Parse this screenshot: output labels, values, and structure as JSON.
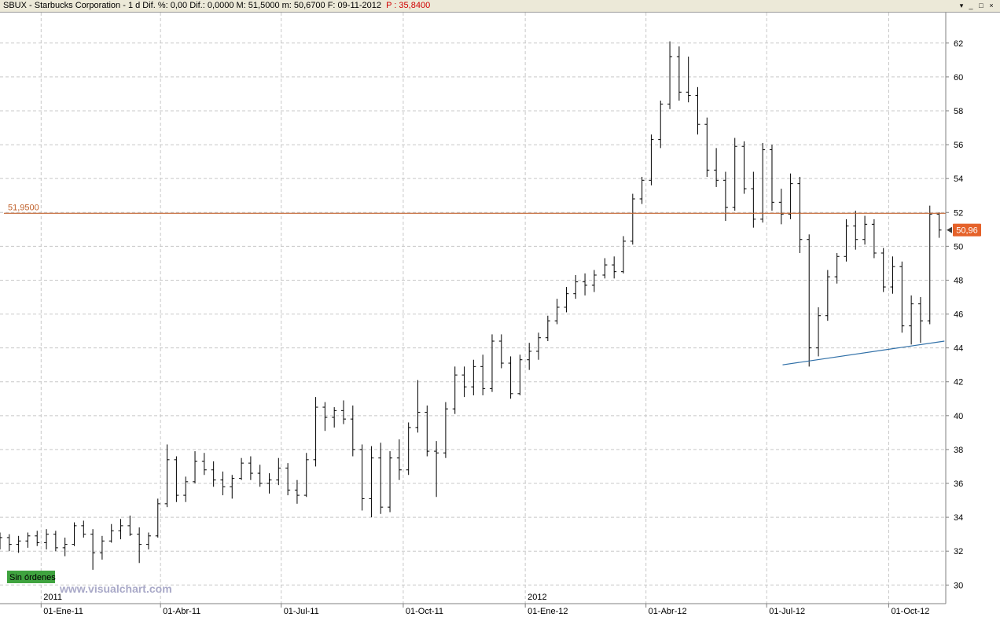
{
  "header": {
    "title": "SBUX - Starbucks Corporation - 1 d  Dif. %: 0,00  Dif.: 0,0000  M: 51,5000  m: 50,6700  F: 09-11-2012",
    "p_label": "P : 35,8400",
    "window_buttons": [
      "▾",
      "_",
      "□",
      "×"
    ]
  },
  "labels": {
    "hline_value": "51,9500",
    "last_price": "50,96",
    "orders_badge": "Sin órdenes",
    "watermark": "www.visualchart.com",
    "year_labels": [
      "2011",
      "2012"
    ]
  },
  "colors": {
    "hline": "#c0612b",
    "trendline": "#2f6fa7",
    "last_price_bg": "#e5622a",
    "orders_badge_bg": "#3fa33f",
    "watermark": "#a9a9c8",
    "bars": "#000000",
    "grid": "#c8c8c8"
  },
  "chart_data": {
    "type": "ohlc-bar",
    "y_ticks": [
      "30",
      "32",
      "34",
      "36",
      "38",
      "40",
      "42",
      "44",
      "46",
      "48",
      "50",
      "52",
      "54",
      "56",
      "58",
      "60",
      "62"
    ],
    "ylim": [
      28.9,
      63.8
    ],
    "x_ticks": [
      "01-Ene-11",
      "01-Abr-11",
      "01-Jul-11",
      "01-Oct-11",
      "01-Ene-12",
      "01-Abr-12",
      "01-Jul-12",
      "01-Oct-12"
    ],
    "x_tick_dates": [
      "2011-01-01",
      "2011-04-01",
      "2011-07-01",
      "2011-10-01",
      "2012-01-01",
      "2012-04-01",
      "2012-07-01",
      "2012-10-01"
    ],
    "xlim": [
      "2010-12-01",
      "2012-11-13"
    ],
    "grid": true,
    "horizontal_line": 51.95,
    "trendline": {
      "start": [
        "2012-07-13",
        43.0
      ],
      "end": [
        "2012-11-12",
        44.4
      ]
    },
    "last_value": 50.96,
    "series": [
      {
        "values": [
          [
            "2010-12-01",
            32.3,
            33.1,
            32.1,
            32.8
          ],
          [
            "2010-12-08",
            32.8,
            33.0,
            32.0,
            32.4
          ],
          [
            "2010-12-15",
            32.4,
            32.9,
            31.9,
            32.6
          ],
          [
            "2010-12-22",
            32.6,
            33.1,
            32.2,
            32.9
          ],
          [
            "2010-12-29",
            32.9,
            33.2,
            32.3,
            32.5
          ],
          [
            "2011-01-05",
            32.5,
            33.3,
            32.1,
            33.0
          ],
          [
            "2011-01-12",
            33.0,
            33.2,
            32.0,
            32.2
          ],
          [
            "2011-01-19",
            32.2,
            32.8,
            31.7,
            32.4
          ],
          [
            "2011-01-26",
            32.4,
            33.7,
            32.3,
            33.5
          ],
          [
            "2011-02-02",
            33.5,
            33.8,
            32.8,
            33.0
          ],
          [
            "2011-02-09",
            33.0,
            33.3,
            30.9,
            31.9
          ],
          [
            "2011-02-16",
            31.9,
            32.9,
            31.5,
            32.6
          ],
          [
            "2011-02-23",
            32.6,
            33.6,
            32.5,
            33.2
          ],
          [
            "2011-03-02",
            33.2,
            33.9,
            32.7,
            33.5
          ],
          [
            "2011-03-09",
            33.5,
            34.1,
            32.9,
            33.0
          ],
          [
            "2011-03-16",
            33.0,
            33.4,
            31.3,
            32.4
          ],
          [
            "2011-03-23",
            32.4,
            33.1,
            32.1,
            32.9
          ],
          [
            "2011-03-30",
            32.9,
            35.1,
            32.8,
            34.8
          ],
          [
            "2011-04-06",
            34.8,
            38.3,
            34.6,
            37.4
          ],
          [
            "2011-04-13",
            37.4,
            37.6,
            34.9,
            35.3
          ],
          [
            "2011-04-20",
            35.3,
            36.4,
            34.9,
            36.1
          ],
          [
            "2011-04-27",
            36.1,
            37.9,
            36.0,
            37.3
          ],
          [
            "2011-05-04",
            37.3,
            37.8,
            36.5,
            36.8
          ],
          [
            "2011-05-11",
            36.8,
            37.3,
            35.8,
            36.2
          ],
          [
            "2011-05-18",
            36.2,
            36.7,
            35.3,
            35.8
          ],
          [
            "2011-05-25",
            35.8,
            36.5,
            35.1,
            36.3
          ],
          [
            "2011-06-01",
            36.3,
            37.5,
            36.2,
            37.2
          ],
          [
            "2011-06-08",
            37.2,
            37.6,
            36.2,
            36.6
          ],
          [
            "2011-06-15",
            36.6,
            37.1,
            35.8,
            36.0
          ],
          [
            "2011-06-22",
            36.0,
            36.6,
            35.4,
            36.2
          ],
          [
            "2011-06-29",
            36.2,
            37.5,
            35.9,
            36.9
          ],
          [
            "2011-07-06",
            36.9,
            37.2,
            35.3,
            35.6
          ],
          [
            "2011-07-13",
            35.6,
            36.2,
            34.8,
            35.3
          ],
          [
            "2011-07-20",
            35.3,
            37.8,
            35.2,
            37.4
          ],
          [
            "2011-07-27",
            37.4,
            41.1,
            37.0,
            40.5
          ],
          [
            "2011-08-03",
            40.5,
            40.8,
            39.1,
            39.9
          ],
          [
            "2011-08-10",
            39.9,
            40.5,
            39.3,
            40.3
          ],
          [
            "2011-08-17",
            40.3,
            40.9,
            39.5,
            39.8
          ],
          [
            "2011-08-24",
            39.8,
            40.6,
            37.6,
            38.0
          ],
          [
            "2011-08-31",
            38.0,
            38.3,
            34.4,
            35.1
          ],
          [
            "2011-09-07",
            35.1,
            38.2,
            34.0,
            37.5
          ],
          [
            "2011-09-14",
            37.5,
            38.4,
            34.2,
            34.6
          ],
          [
            "2011-09-21",
            34.6,
            37.9,
            34.3,
            37.5
          ],
          [
            "2011-09-28",
            37.5,
            38.6,
            36.2,
            36.8
          ],
          [
            "2011-10-05",
            36.8,
            39.6,
            36.5,
            39.3
          ],
          [
            "2011-10-12",
            39.3,
            42.1,
            39.0,
            40.2
          ],
          [
            "2011-10-19",
            40.2,
            40.6,
            37.6,
            37.9
          ],
          [
            "2011-10-26",
            37.9,
            38.5,
            35.2,
            37.8
          ],
          [
            "2011-11-02",
            37.8,
            40.8,
            37.5,
            40.4
          ],
          [
            "2011-11-09",
            40.4,
            42.9,
            40.1,
            42.4
          ],
          [
            "2011-11-16",
            42.4,
            42.9,
            41.1,
            41.7
          ],
          [
            "2011-11-23",
            41.7,
            43.3,
            41.2,
            42.9
          ],
          [
            "2011-11-30",
            42.9,
            43.6,
            41.2,
            41.6
          ],
          [
            "2011-12-07",
            41.6,
            44.8,
            41.4,
            44.4
          ],
          [
            "2011-12-14",
            44.4,
            44.8,
            42.8,
            43.1
          ],
          [
            "2011-12-21",
            43.1,
            43.5,
            41.0,
            41.3
          ],
          [
            "2011-12-28",
            41.3,
            43.6,
            41.2,
            43.3
          ],
          [
            "2012-01-04",
            43.3,
            44.3,
            42.7,
            43.8
          ],
          [
            "2012-01-11",
            43.8,
            44.9,
            43.3,
            44.6
          ],
          [
            "2012-01-18",
            44.6,
            45.9,
            44.4,
            45.6
          ],
          [
            "2012-01-25",
            45.6,
            46.9,
            45.4,
            46.4
          ],
          [
            "2012-02-01",
            46.4,
            47.6,
            46.1,
            47.2
          ],
          [
            "2012-02-08",
            47.2,
            48.3,
            46.9,
            47.9
          ],
          [
            "2012-02-15",
            47.9,
            48.4,
            47.1,
            47.7
          ],
          [
            "2012-02-22",
            47.7,
            48.6,
            47.3,
            48.3
          ],
          [
            "2012-03-01",
            48.3,
            49.3,
            48.1,
            48.9
          ],
          [
            "2012-03-08",
            48.9,
            49.4,
            48.1,
            48.5
          ],
          [
            "2012-03-15",
            48.5,
            50.6,
            48.4,
            50.3
          ],
          [
            "2012-03-22",
            50.3,
            53.1,
            50.1,
            52.8
          ],
          [
            "2012-03-29",
            52.8,
            54.1,
            52.5,
            53.9
          ],
          [
            "2012-04-05",
            53.9,
            56.6,
            53.6,
            56.3
          ],
          [
            "2012-04-12",
            56.3,
            58.6,
            55.8,
            58.4
          ],
          [
            "2012-04-19",
            58.4,
            62.1,
            58.1,
            61.2
          ],
          [
            "2012-04-26",
            61.2,
            61.8,
            58.6,
            59.1
          ],
          [
            "2012-05-03",
            59.1,
            61.2,
            58.5,
            58.9
          ],
          [
            "2012-05-10",
            58.9,
            59.4,
            56.6,
            57.2
          ],
          [
            "2012-05-17",
            57.2,
            57.6,
            54.1,
            54.5
          ],
          [
            "2012-05-24",
            54.5,
            55.8,
            53.5,
            53.9
          ],
          [
            "2012-05-31",
            53.9,
            54.4,
            51.5,
            52.3
          ],
          [
            "2012-06-07",
            52.3,
            56.4,
            52.1,
            55.9
          ],
          [
            "2012-06-14",
            55.9,
            56.2,
            53.1,
            53.4
          ],
          [
            "2012-06-21",
            53.4,
            54.4,
            51.1,
            51.6
          ],
          [
            "2012-06-28",
            51.6,
            56.1,
            51.4,
            55.7
          ],
          [
            "2012-07-05",
            55.7,
            56.0,
            52.1,
            52.6
          ],
          [
            "2012-07-12",
            52.6,
            53.4,
            51.3,
            51.9
          ],
          [
            "2012-07-19",
            51.9,
            54.3,
            51.6,
            53.7
          ],
          [
            "2012-07-26",
            53.7,
            54.1,
            49.6,
            50.4
          ],
          [
            "2012-08-02",
            50.4,
            50.7,
            42.9,
            44.0
          ],
          [
            "2012-08-09",
            44.0,
            46.4,
            43.5,
            45.9
          ],
          [
            "2012-08-16",
            45.9,
            48.6,
            45.6,
            48.2
          ],
          [
            "2012-08-23",
            48.2,
            49.6,
            47.8,
            49.4
          ],
          [
            "2012-08-30",
            49.4,
            51.6,
            49.1,
            51.2
          ],
          [
            "2012-09-06",
            51.2,
            52.1,
            49.8,
            50.4
          ],
          [
            "2012-09-13",
            50.4,
            51.8,
            50.1,
            51.3
          ],
          [
            "2012-09-20",
            51.3,
            51.6,
            49.3,
            49.6
          ],
          [
            "2012-09-27",
            49.6,
            49.9,
            47.3,
            47.6
          ],
          [
            "2012-10-04",
            47.6,
            49.4,
            47.2,
            48.8
          ],
          [
            "2012-10-11",
            48.8,
            49.1,
            44.9,
            45.3
          ],
          [
            "2012-10-18",
            45.3,
            47.1,
            44.2,
            46.6
          ],
          [
            "2012-10-25",
            46.6,
            47.0,
            44.3,
            45.6
          ],
          [
            "2012-11-01",
            45.6,
            52.4,
            45.4,
            51.9
          ],
          [
            "2012-11-08",
            51.9,
            52.0,
            50.5,
            50.96
          ]
        ]
      }
    ]
  }
}
